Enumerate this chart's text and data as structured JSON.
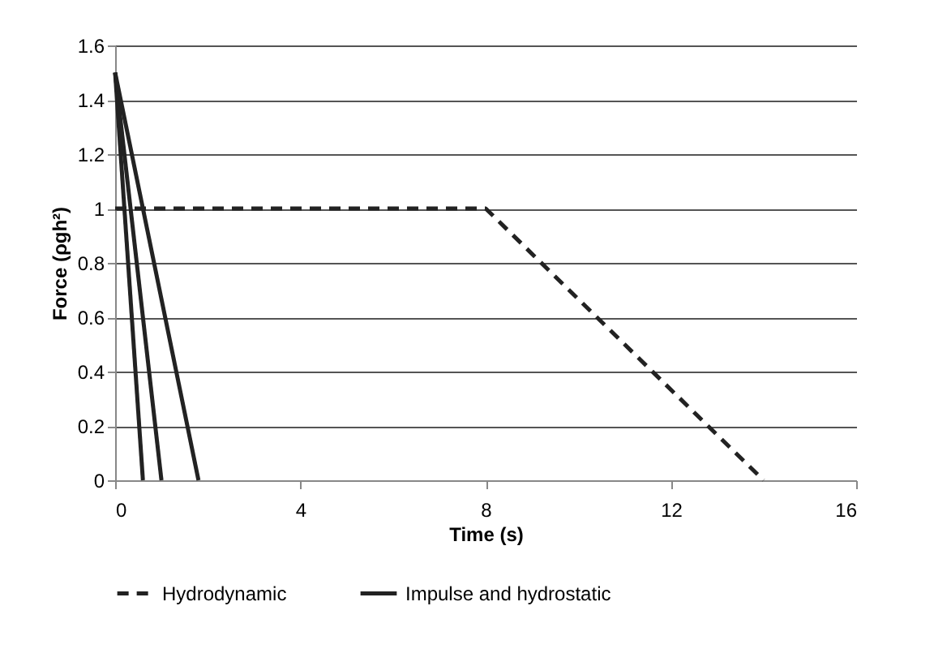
{
  "chart_data": {
    "type": "line",
    "xlabel": "Time (s)",
    "ylabel": "Force (ρgh²)",
    "xlim": [
      0,
      16
    ],
    "xticks": [
      0,
      4,
      8,
      12,
      16
    ],
    "ylim": [
      0,
      1.6
    ],
    "yticks": [
      0,
      0.2,
      0.4,
      0.6,
      0.8,
      1,
      1.2,
      1.4,
      1.6
    ],
    "grid": "y",
    "legend": "bottom",
    "series": [
      {
        "name": "Hydrodynamic",
        "color": "#222222",
        "line_style": "dashed",
        "x": [
          0,
          8,
          14
        ],
        "values": [
          1,
          1,
          0
        ]
      },
      {
        "name": "Impulse and hydrostatic",
        "color": "#222222",
        "line_style": "solid",
        "x": [
          0,
          0.6
        ],
        "values": [
          1.5,
          0
        ]
      },
      {
        "color": "#222222",
        "line_style": "solid",
        "x": [
          0,
          1
        ],
        "values": [
          1.5,
          0
        ]
      },
      {
        "color": "#222222",
        "line_style": "solid",
        "x": [
          0,
          1.8
        ],
        "values": [
          1.5,
          0
        ]
      }
    ]
  }
}
